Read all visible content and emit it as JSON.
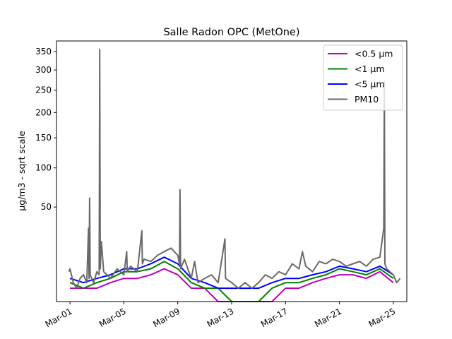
{
  "chart_data": {
    "type": "line",
    "title": "Salle Radon OPC (MetOne)",
    "xlabel": "",
    "ylabel": "µg/m3 - sqrt scale",
    "yscale": "sqrt",
    "ylim": [
      0,
      380
    ],
    "xlim": [
      "2021-02-28",
      "2021-03-26"
    ],
    "y_ticks": [
      50,
      100,
      150,
      200,
      250,
      300,
      350
    ],
    "x_ticks": [
      {
        "date": "2021-03-01",
        "label": "Mar-01"
      },
      {
        "date": "2021-03-05",
        "label": "Mar-05"
      },
      {
        "date": "2021-03-09",
        "label": "Mar-09"
      },
      {
        "date": "2021-03-13",
        "label": "Mar-13"
      },
      {
        "date": "2021-03-17",
        "label": "Mar-17"
      },
      {
        "date": "2021-03-21",
        "label": "Mar-21"
      },
      {
        "date": "2021-03-25",
        "label": "Mar-25"
      }
    ],
    "x_tick_rotation": 30,
    "grid": false,
    "legend_position": "top-right",
    "series": [
      {
        "name": "<0.5 µm",
        "color": "#bf00bf",
        "points": [
          [
            "2021-03-01",
            1
          ],
          [
            "2021-03-02",
            1
          ],
          [
            "2021-03-03",
            1
          ],
          [
            "2021-03-04",
            2
          ],
          [
            "2021-03-05",
            3
          ],
          [
            "2021-03-06",
            3
          ],
          [
            "2021-03-07",
            4
          ],
          [
            "2021-03-08",
            6
          ],
          [
            "2021-03-09",
            4
          ],
          [
            "2021-03-10",
            1
          ],
          [
            "2021-03-11",
            1
          ],
          [
            "2021-03-12",
            0
          ],
          [
            "2021-03-13",
            0
          ],
          [
            "2021-03-14",
            0
          ],
          [
            "2021-03-15",
            0
          ],
          [
            "2021-03-16",
            0
          ],
          [
            "2021-03-17",
            1
          ],
          [
            "2021-03-18",
            1
          ],
          [
            "2021-03-19",
            2
          ],
          [
            "2021-03-20",
            3
          ],
          [
            "2021-03-21",
            4
          ],
          [
            "2021-03-22",
            4
          ],
          [
            "2021-03-23",
            3
          ],
          [
            "2021-03-24",
            5
          ],
          [
            "2021-03-25",
            2
          ]
        ]
      },
      {
        "name": "<1 µm",
        "color": "#008000",
        "points": [
          [
            "2021-03-01",
            2
          ],
          [
            "2021-03-02",
            1
          ],
          [
            "2021-03-03",
            2
          ],
          [
            "2021-03-04",
            3
          ],
          [
            "2021-03-05",
            5
          ],
          [
            "2021-03-06",
            5
          ],
          [
            "2021-03-07",
            6
          ],
          [
            "2021-03-08",
            9
          ],
          [
            "2021-03-09",
            6
          ],
          [
            "2021-03-10",
            2
          ],
          [
            "2021-03-11",
            1
          ],
          [
            "2021-03-12",
            1
          ],
          [
            "2021-03-13",
            0
          ],
          [
            "2021-03-14",
            0
          ],
          [
            "2021-03-15",
            0
          ],
          [
            "2021-03-16",
            1
          ],
          [
            "2021-03-17",
            2
          ],
          [
            "2021-03-18",
            2
          ],
          [
            "2021-03-19",
            3
          ],
          [
            "2021-03-20",
            4
          ],
          [
            "2021-03-21",
            6
          ],
          [
            "2021-03-22",
            5
          ],
          [
            "2021-03-23",
            4
          ],
          [
            "2021-03-24",
            6
          ],
          [
            "2021-03-25",
            3
          ]
        ]
      },
      {
        "name": "<5 µm",
        "color": "#0000ff",
        "points": [
          [
            "2021-03-01",
            3
          ],
          [
            "2021-03-02",
            2
          ],
          [
            "2021-03-03",
            3
          ],
          [
            "2021-03-04",
            4
          ],
          [
            "2021-03-05",
            6
          ],
          [
            "2021-03-06",
            6
          ],
          [
            "2021-03-07",
            8
          ],
          [
            "2021-03-08",
            11
          ],
          [
            "2021-03-09",
            8
          ],
          [
            "2021-03-10",
            3
          ],
          [
            "2021-03-11",
            2
          ],
          [
            "2021-03-12",
            1
          ],
          [
            "2021-03-13",
            1
          ],
          [
            "2021-03-14",
            1
          ],
          [
            "2021-03-15",
            1
          ],
          [
            "2021-03-16",
            2
          ],
          [
            "2021-03-17",
            3
          ],
          [
            "2021-03-18",
            3
          ],
          [
            "2021-03-19",
            4
          ],
          [
            "2021-03-20",
            5
          ],
          [
            "2021-03-21",
            7
          ],
          [
            "2021-03-22",
            6
          ],
          [
            "2021-03-23",
            5
          ],
          [
            "2021-03-24",
            7
          ],
          [
            "2021-03-25",
            4
          ]
        ]
      },
      {
        "name": "PM10",
        "color": "#696969",
        "points": [
          [
            "2021-02-28 22:00",
            5
          ],
          [
            "2021-03-01 00:00",
            6
          ],
          [
            "2021-03-01 06:00",
            2
          ],
          [
            "2021-03-01 12:00",
            1
          ],
          [
            "2021-03-01 18:00",
            3
          ],
          [
            "2021-03-02 00:00",
            4
          ],
          [
            "2021-03-02 06:00",
            2
          ],
          [
            "2021-03-02 09:00",
            30
          ],
          [
            "2021-03-02 10:00",
            3
          ],
          [
            "2021-03-02 11:00",
            60
          ],
          [
            "2021-03-02 12:00",
            4
          ],
          [
            "2021-03-02 18:00",
            2
          ],
          [
            "2021-03-03 00:00",
            5
          ],
          [
            "2021-03-03 04:00",
            4
          ],
          [
            "2021-03-03 05:00",
            356
          ],
          [
            "2021-03-03 06:00",
            6
          ],
          [
            "2021-03-03 08:00",
            20
          ],
          [
            "2021-03-03 12:00",
            5
          ],
          [
            "2021-03-03 18:00",
            4
          ],
          [
            "2021-03-04 00:00",
            3
          ],
          [
            "2021-03-04 12:00",
            6
          ],
          [
            "2021-03-05 00:00",
            4
          ],
          [
            "2021-03-05 05:00",
            14
          ],
          [
            "2021-03-05 06:00",
            5
          ],
          [
            "2021-03-05 12:00",
            7
          ],
          [
            "2021-03-06 00:00",
            5
          ],
          [
            "2021-03-06 08:00",
            28
          ],
          [
            "2021-03-06 09:00",
            8
          ],
          [
            "2021-03-06 12:00",
            10
          ],
          [
            "2021-03-07 00:00",
            9
          ],
          [
            "2021-03-07 12:00",
            12
          ],
          [
            "2021-03-08 00:00",
            14
          ],
          [
            "2021-03-08 12:00",
            16
          ],
          [
            "2021-03-09 00:00",
            12
          ],
          [
            "2021-03-09 03:00",
            8
          ],
          [
            "2021-03-09 04:00",
            70
          ],
          [
            "2021-03-09 05:00",
            6
          ],
          [
            "2021-03-09 12:00",
            10
          ],
          [
            "2021-03-10 00:00",
            3
          ],
          [
            "2021-03-10 06:00",
            9
          ],
          [
            "2021-03-10 12:00",
            2
          ],
          [
            "2021-03-11 00:00",
            3
          ],
          [
            "2021-03-11 12:00",
            4
          ],
          [
            "2021-03-12 00:00",
            2
          ],
          [
            "2021-03-12 12:00",
            22
          ],
          [
            "2021-03-12 13:00",
            3
          ],
          [
            "2021-03-13 00:00",
            2
          ],
          [
            "2021-03-13 12:00",
            1
          ],
          [
            "2021-03-14 00:00",
            2
          ],
          [
            "2021-03-14 12:00",
            1
          ],
          [
            "2021-03-15 00:00",
            2
          ],
          [
            "2021-03-15 12:00",
            4
          ],
          [
            "2021-03-16 00:00",
            3
          ],
          [
            "2021-03-16 12:00",
            5
          ],
          [
            "2021-03-17 00:00",
            4
          ],
          [
            "2021-03-17 12:00",
            8
          ],
          [
            "2021-03-18 00:00",
            6
          ],
          [
            "2021-03-18 06:00",
            14
          ],
          [
            "2021-03-18 12:00",
            7
          ],
          [
            "2021-03-19 00:00",
            5
          ],
          [
            "2021-03-19 12:00",
            9
          ],
          [
            "2021-03-20 00:00",
            8
          ],
          [
            "2021-03-20 12:00",
            10
          ],
          [
            "2021-03-21 00:00",
            9
          ],
          [
            "2021-03-21 12:00",
            7
          ],
          [
            "2021-03-22 00:00",
            8
          ],
          [
            "2021-03-22 12:00",
            9
          ],
          [
            "2021-03-23 00:00",
            7
          ],
          [
            "2021-03-23 12:00",
            10
          ],
          [
            "2021-03-24 00:00",
            11
          ],
          [
            "2021-03-24 07:00",
            30
          ],
          [
            "2021-03-24 08:00",
            270
          ],
          [
            "2021-03-24 09:00",
            8
          ],
          [
            "2021-03-24 12:00",
            6
          ],
          [
            "2021-03-25 00:00",
            4
          ],
          [
            "2021-03-25 06:00",
            2
          ],
          [
            "2021-03-25 12:00",
            3
          ]
        ]
      }
    ]
  }
}
